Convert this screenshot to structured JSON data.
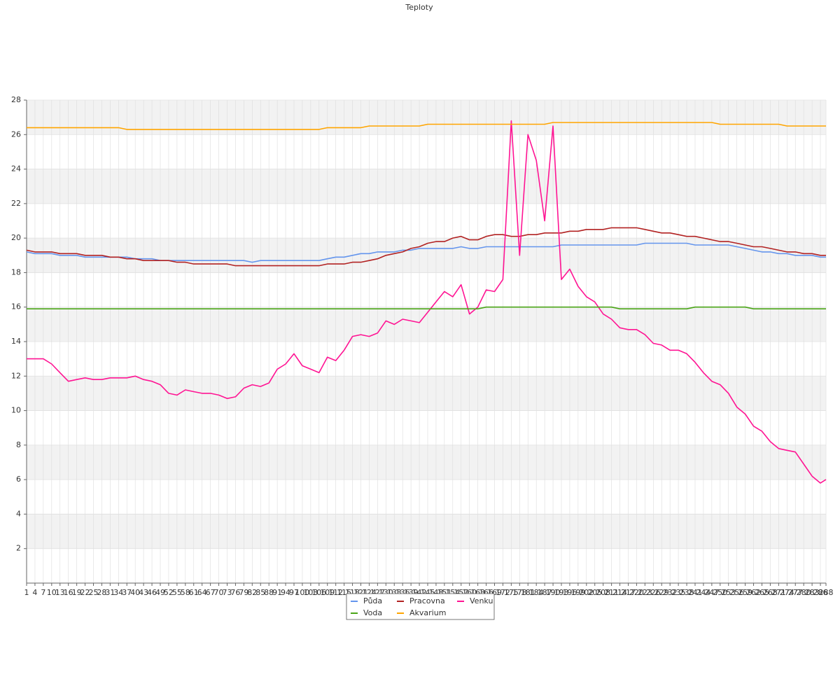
{
  "chart_data": {
    "type": "line",
    "title": "Teploty",
    "x": [
      1,
      4,
      7,
      10,
      13,
      16,
      19,
      22,
      25,
      28,
      31,
      34,
      37,
      40,
      43,
      46,
      49,
      52,
      55,
      58,
      61,
      64,
      67,
      70,
      73,
      76,
      79,
      82,
      85,
      88,
      91,
      94,
      97,
      100,
      103,
      106,
      109,
      112,
      115,
      118,
      121,
      124,
      127,
      130,
      133,
      136,
      139,
      142,
      145,
      148,
      151,
      154,
      157,
      160,
      163,
      166,
      169,
      172,
      175,
      178,
      181,
      184,
      187,
      190,
      193,
      196,
      199,
      202,
      205,
      208,
      211,
      214,
      217,
      220,
      223,
      226,
      229,
      232,
      235,
      238,
      241,
      244,
      247,
      250,
      253,
      256,
      259,
      262,
      265,
      268,
      271,
      274,
      277,
      280,
      283,
      286,
      288
    ],
    "xlim": [
      1,
      288
    ],
    "ylim": [
      0,
      28
    ],
    "yticks": [
      2,
      4,
      6,
      8,
      10,
      12,
      14,
      16,
      18,
      20,
      22,
      24,
      26,
      28
    ],
    "grid": true,
    "legend": "bottom",
    "series": [
      {
        "name": "Půda",
        "color": "#6495ed",
        "values": [
          19.2,
          19.1,
          19.1,
          19.1,
          19.0,
          19.0,
          19.0,
          18.9,
          18.9,
          18.9,
          18.9,
          18.9,
          18.9,
          18.8,
          18.8,
          18.8,
          18.7,
          18.7,
          18.7,
          18.7,
          18.7,
          18.7,
          18.7,
          18.7,
          18.7,
          18.7,
          18.7,
          18.6,
          18.7,
          18.7,
          18.7,
          18.7,
          18.7,
          18.7,
          18.7,
          18.7,
          18.8,
          18.9,
          18.9,
          19.0,
          19.1,
          19.1,
          19.2,
          19.2,
          19.2,
          19.3,
          19.3,
          19.4,
          19.4,
          19.4,
          19.4,
          19.4,
          19.5,
          19.4,
          19.4,
          19.5,
          19.5,
          19.5,
          19.5,
          19.5,
          19.5,
          19.5,
          19.5,
          19.5,
          19.6,
          19.6,
          19.6,
          19.6,
          19.6,
          19.6,
          19.6,
          19.6,
          19.6,
          19.6,
          19.7,
          19.7,
          19.7,
          19.7,
          19.7,
          19.7,
          19.6,
          19.6,
          19.6,
          19.6,
          19.6,
          19.5,
          19.4,
          19.3,
          19.2,
          19.2,
          19.1,
          19.1,
          19.0,
          19.0,
          19.0,
          18.9,
          18.9
        ]
      },
      {
        "name": "Pracovna",
        "color": "#b22222",
        "values": [
          19.3,
          19.2,
          19.2,
          19.2,
          19.1,
          19.1,
          19.1,
          19.0,
          19.0,
          19.0,
          18.9,
          18.9,
          18.8,
          18.8,
          18.7,
          18.7,
          18.7,
          18.7,
          18.6,
          18.6,
          18.5,
          18.5,
          18.5,
          18.5,
          18.5,
          18.4,
          18.4,
          18.4,
          18.4,
          18.4,
          18.4,
          18.4,
          18.4,
          18.4,
          18.4,
          18.4,
          18.5,
          18.5,
          18.5,
          18.6,
          18.6,
          18.7,
          18.8,
          19.0,
          19.1,
          19.2,
          19.4,
          19.5,
          19.7,
          19.8,
          19.8,
          20.0,
          20.1,
          19.9,
          19.9,
          20.1,
          20.2,
          20.2,
          20.1,
          20.1,
          20.2,
          20.2,
          20.3,
          20.3,
          20.3,
          20.4,
          20.4,
          20.5,
          20.5,
          20.5,
          20.6,
          20.6,
          20.6,
          20.6,
          20.5,
          20.4,
          20.3,
          20.3,
          20.2,
          20.1,
          20.1,
          20.0,
          19.9,
          19.8,
          19.8,
          19.7,
          19.6,
          19.5,
          19.5,
          19.4,
          19.3,
          19.2,
          19.2,
          19.1,
          19.1,
          19.0,
          19.0
        ]
      },
      {
        "name": "Venku",
        "color": "#ff1493",
        "values": [
          13.0,
          13.0,
          13.0,
          12.7,
          12.2,
          11.7,
          11.8,
          11.9,
          11.8,
          11.8,
          11.9,
          11.9,
          11.9,
          12.0,
          11.8,
          11.7,
          11.5,
          11.0,
          10.9,
          11.2,
          11.1,
          11.0,
          11.0,
          10.9,
          10.7,
          10.8,
          11.3,
          11.5,
          11.4,
          11.6,
          12.4,
          12.7,
          13.3,
          12.6,
          12.4,
          12.2,
          13.1,
          12.9,
          13.5,
          14.3,
          14.4,
          14.3,
          14.5,
          15.2,
          15.0,
          15.3,
          15.2,
          15.1,
          15.7,
          16.3,
          16.9,
          16.6,
          17.3,
          15.6,
          16.0,
          17.0,
          16.9,
          17.6,
          26.8,
          19.0,
          26.0,
          24.5,
          21.0,
          26.5,
          17.6,
          18.2,
          17.2,
          16.6,
          16.3,
          15.6,
          15.3,
          14.8,
          14.7,
          14.7,
          14.4,
          13.9,
          13.8,
          13.5,
          13.5,
          13.3,
          12.8,
          12.2,
          11.7,
          11.5,
          11.0,
          10.2,
          9.8,
          9.1,
          8.8,
          8.2,
          7.8,
          7.7,
          7.6,
          6.9,
          6.2,
          5.8,
          6.0
        ]
      },
      {
        "name": "Voda",
        "color": "#4aa517",
        "values": [
          15.9,
          15.9,
          15.9,
          15.9,
          15.9,
          15.9,
          15.9,
          15.9,
          15.9,
          15.9,
          15.9,
          15.9,
          15.9,
          15.9,
          15.9,
          15.9,
          15.9,
          15.9,
          15.9,
          15.9,
          15.9,
          15.9,
          15.9,
          15.9,
          15.9,
          15.9,
          15.9,
          15.9,
          15.9,
          15.9,
          15.9,
          15.9,
          15.9,
          15.9,
          15.9,
          15.9,
          15.9,
          15.9,
          15.9,
          15.9,
          15.9,
          15.9,
          15.9,
          15.9,
          15.9,
          15.9,
          15.9,
          15.9,
          15.9,
          15.9,
          15.9,
          15.9,
          15.9,
          15.9,
          15.9,
          16.0,
          16.0,
          16.0,
          16.0,
          16.0,
          16.0,
          16.0,
          16.0,
          16.0,
          16.0,
          16.0,
          16.0,
          16.0,
          16.0,
          16.0,
          16.0,
          15.9,
          15.9,
          15.9,
          15.9,
          15.9,
          15.9,
          15.9,
          15.9,
          15.9,
          16.0,
          16.0,
          16.0,
          16.0,
          16.0,
          16.0,
          16.0,
          15.9,
          15.9,
          15.9,
          15.9,
          15.9,
          15.9,
          15.9,
          15.9,
          15.9,
          15.9
        ]
      },
      {
        "name": "Akvarium",
        "color": "#ffa500",
        "values": [
          26.4,
          26.4,
          26.4,
          26.4,
          26.4,
          26.4,
          26.4,
          26.4,
          26.4,
          26.4,
          26.4,
          26.4,
          26.3,
          26.3,
          26.3,
          26.3,
          26.3,
          26.3,
          26.3,
          26.3,
          26.3,
          26.3,
          26.3,
          26.3,
          26.3,
          26.3,
          26.3,
          26.3,
          26.3,
          26.3,
          26.3,
          26.3,
          26.3,
          26.3,
          26.3,
          26.3,
          26.4,
          26.4,
          26.4,
          26.4,
          26.4,
          26.5,
          26.5,
          26.5,
          26.5,
          26.5,
          26.5,
          26.5,
          26.6,
          26.6,
          26.6,
          26.6,
          26.6,
          26.6,
          26.6,
          26.6,
          26.6,
          26.6,
          26.6,
          26.6,
          26.6,
          26.6,
          26.6,
          26.7,
          26.7,
          26.7,
          26.7,
          26.7,
          26.7,
          26.7,
          26.7,
          26.7,
          26.7,
          26.7,
          26.7,
          26.7,
          26.7,
          26.7,
          26.7,
          26.7,
          26.7,
          26.7,
          26.7,
          26.6,
          26.6,
          26.6,
          26.6,
          26.6,
          26.6,
          26.6,
          26.6,
          26.5,
          26.5,
          26.5,
          26.5,
          26.5,
          26.5
        ]
      }
    ]
  }
}
